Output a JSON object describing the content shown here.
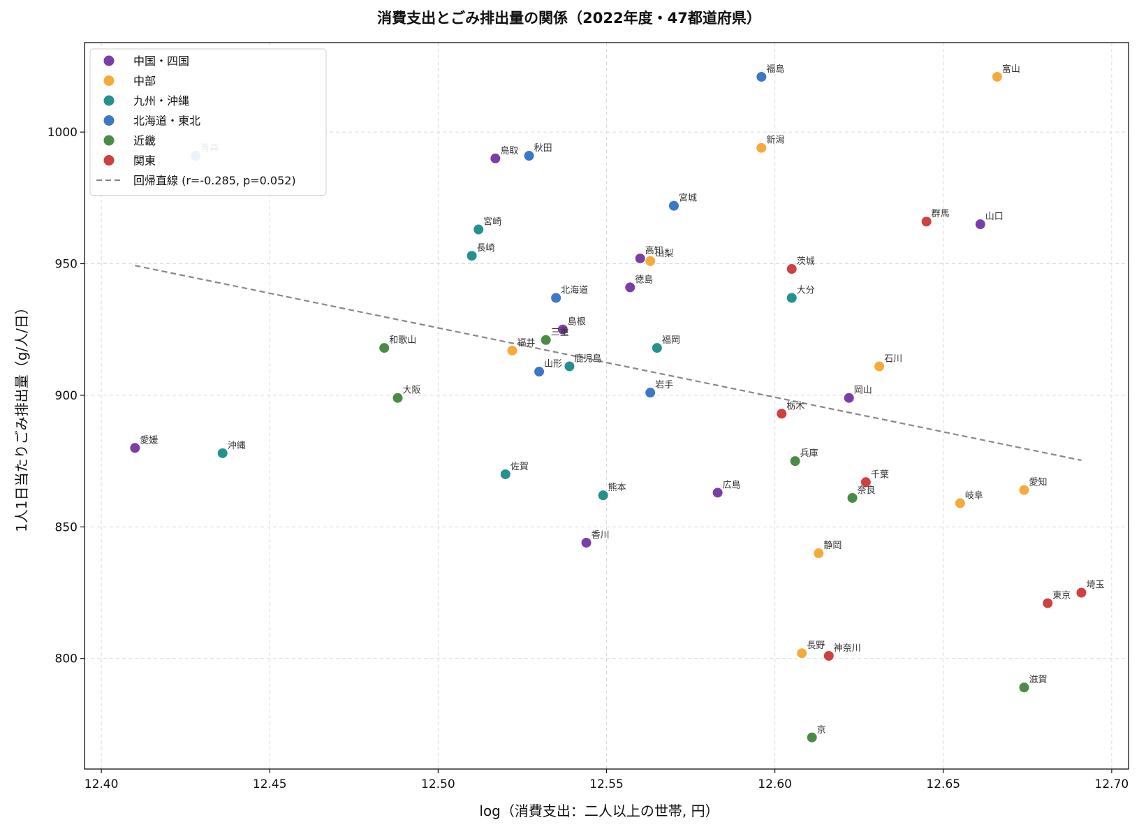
{
  "chart_data": {
    "type": "scatter",
    "title": "消費支出とごみ排出量の関係（2022年度・47都道府県）",
    "xlabel": "log（消費支出：二人以上の世帯, 円）",
    "ylabel": "1人1日当たりごみ排出量（g/人/日）",
    "xlim": [
      12.395,
      12.705
    ],
    "ylim": [
      758,
      1034
    ],
    "xticks": [
      "12.40",
      "12.45",
      "12.50",
      "12.55",
      "12.60",
      "12.65",
      "12.70"
    ],
    "yticks": [
      "800",
      "850",
      "900",
      "950",
      "1000"
    ],
    "grid": true,
    "legend_position": "top-left",
    "series": [
      {
        "name": "中国・四国",
        "color": "#7b3ea8",
        "points": [
          {
            "label": "鳥取",
            "x": 12.517,
            "y": 990
          },
          {
            "label": "島根",
            "x": 12.537,
            "y": 925
          },
          {
            "label": "岡山",
            "x": 12.622,
            "y": 899
          },
          {
            "label": "広島",
            "x": 12.583,
            "y": 863
          },
          {
            "label": "山口",
            "x": 12.661,
            "y": 965
          },
          {
            "label": "徳島",
            "x": 12.557,
            "y": 941
          },
          {
            "label": "香川",
            "x": 12.544,
            "y": 844
          },
          {
            "label": "愛媛",
            "x": 12.41,
            "y": 880
          },
          {
            "label": "高知",
            "x": 12.56,
            "y": 952
          }
        ]
      },
      {
        "name": "中部",
        "color": "#f5ab3c",
        "points": [
          {
            "label": "新潟",
            "x": 12.596,
            "y": 994
          },
          {
            "label": "富山",
            "x": 12.666,
            "y": 1021
          },
          {
            "label": "石川",
            "x": 12.631,
            "y": 911
          },
          {
            "label": "福井",
            "x": 12.522,
            "y": 917
          },
          {
            "label": "山梨",
            "x": 12.563,
            "y": 951
          },
          {
            "label": "長野",
            "x": 12.608,
            "y": 802
          },
          {
            "label": "岐阜",
            "x": 12.655,
            "y": 859
          },
          {
            "label": "静岡",
            "x": 12.613,
            "y": 840
          },
          {
            "label": "愛知",
            "x": 12.674,
            "y": 864
          }
        ]
      },
      {
        "name": "九州・沖縄",
        "color": "#25918f",
        "points": [
          {
            "label": "福岡",
            "x": 12.565,
            "y": 918
          },
          {
            "label": "佐賀",
            "x": 12.52,
            "y": 870
          },
          {
            "label": "長崎",
            "x": 12.51,
            "y": 953
          },
          {
            "label": "熊本",
            "x": 12.549,
            "y": 862
          },
          {
            "label": "大分",
            "x": 12.605,
            "y": 937
          },
          {
            "label": "宮崎",
            "x": 12.512,
            "y": 963
          },
          {
            "label": "鹿児島",
            "x": 12.539,
            "y": 911
          },
          {
            "label": "沖縄",
            "x": 12.436,
            "y": 878
          }
        ]
      },
      {
        "name": "北海道・東北",
        "color": "#3b78c8",
        "points": [
          {
            "label": "北海道",
            "x": 12.535,
            "y": 937
          },
          {
            "label": "青森",
            "x": 12.428,
            "y": 991
          },
          {
            "label": "岩手",
            "x": 12.563,
            "y": 901
          },
          {
            "label": "宮城",
            "x": 12.57,
            "y": 972
          },
          {
            "label": "秋田",
            "x": 12.527,
            "y": 991
          },
          {
            "label": "山形",
            "x": 12.53,
            "y": 909
          },
          {
            "label": "福島",
            "x": 12.596,
            "y": 1021
          }
        ]
      },
      {
        "name": "近畿",
        "color": "#4a8c46",
        "points": [
          {
            "label": "三重",
            "x": 12.532,
            "y": 921
          },
          {
            "label": "滋賀",
            "x": 12.674,
            "y": 789
          },
          {
            "label": "京",
            "x": 12.611,
            "y": 770
          },
          {
            "label": "大阪",
            "x": 12.488,
            "y": 899
          },
          {
            "label": "兵庫",
            "x": 12.606,
            "y": 875
          },
          {
            "label": "奈良",
            "x": 12.623,
            "y": 861
          },
          {
            "label": "和歌山",
            "x": 12.484,
            "y": 918
          }
        ]
      },
      {
        "name": "関東",
        "color": "#cf4040",
        "points": [
          {
            "label": "茨城",
            "x": 12.605,
            "y": 948
          },
          {
            "label": "栃木",
            "x": 12.602,
            "y": 893
          },
          {
            "label": "群馬",
            "x": 12.645,
            "y": 966
          },
          {
            "label": "埼玉",
            "x": 12.691,
            "y": 825
          },
          {
            "label": "千葉",
            "x": 12.627,
            "y": 867
          },
          {
            "label": "東京",
            "x": 12.681,
            "y": 821
          },
          {
            "label": "神奈川",
            "x": 12.616,
            "y": 801
          }
        ]
      }
    ],
    "regression": {
      "name": "回帰直線 (r=-0.285, p=0.052)",
      "color": "#888888",
      "x": [
        12.41,
        12.691
      ],
      "y": [
        949.3,
        875.3
      ]
    }
  }
}
